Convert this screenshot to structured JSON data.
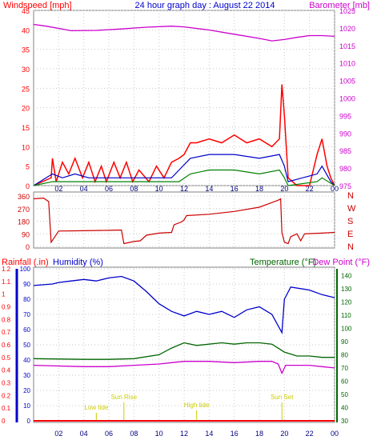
{
  "colors": {
    "wind": "#ff0000",
    "wind_avg": "#0000c8",
    "wind_low": "#008000",
    "barometer": "#cc00cc",
    "direction": "#cc0000",
    "humidity": "#0000cc",
    "temperature": "#006600",
    "dewpoint": "#cc00cc",
    "rainfall": "#ff0000",
    "events": "#cccc00",
    "title": "#0000cc",
    "grid": "#c8c8c8"
  },
  "chart_data": [
    {
      "type": "line",
      "title": "24 hour graph day : August 22 2014",
      "left_axis_label": "Windspeed [mph]",
      "right_axis_label": "Barometer [mb]",
      "x_ticks": [
        "02",
        "04",
        "06",
        "08",
        "10",
        "12",
        "14",
        "16",
        "18",
        "20",
        "22",
        "00"
      ],
      "y_left_ticks": [
        "0",
        "5",
        "10",
        "15",
        "20",
        "25",
        "30",
        "35",
        "40",
        "45"
      ],
      "y_right_ticks": [
        "975",
        "980",
        "985",
        "990",
        "995",
        "1000",
        "1005",
        "1010",
        "1015",
        "1020",
        "1025"
      ],
      "ylim_left": [
        0,
        45
      ],
      "ylim_right": [
        975,
        1025
      ],
      "x_range": [
        0,
        24
      ],
      "series": [
        {
          "values": [
            [
              0,
              0
            ],
            [
              1.4,
              2
            ],
            [
              1.5,
              7
            ],
            [
              1.8,
              1
            ],
            [
              2.3,
              6
            ],
            [
              2.8,
              3
            ],
            [
              3.3,
              7
            ],
            [
              3.9,
              2
            ],
            [
              4.4,
              6
            ],
            [
              4.9,
              1
            ],
            [
              5.4,
              5
            ],
            [
              5.8,
              1
            ],
            [
              6.4,
              6
            ],
            [
              6.9,
              2
            ],
            [
              7.4,
              6
            ],
            [
              7.9,
              1
            ],
            [
              8.4,
              4
            ],
            [
              9.2,
              1
            ],
            [
              9.8,
              5
            ],
            [
              10.4,
              2
            ],
            [
              11.0,
              6
            ],
            [
              11.6,
              7
            ],
            [
              12.0,
              8
            ],
            [
              12.5,
              11
            ],
            [
              13.0,
              11
            ],
            [
              14.0,
              12
            ],
            [
              15.0,
              11
            ],
            [
              16.0,
              13
            ],
            [
              17.0,
              11
            ],
            [
              18.0,
              12
            ],
            [
              19.0,
              10
            ],
            [
              19.6,
              12
            ],
            [
              19.8,
              26
            ],
            [
              20.0,
              18
            ],
            [
              20.3,
              2
            ],
            [
              21.0,
              0
            ],
            [
              22.0,
              0
            ],
            [
              22.6,
              8
            ],
            [
              23.0,
              12
            ],
            [
              23.4,
              5
            ],
            [
              23.7,
              2
            ],
            [
              24,
              0
            ]
          ]
        },
        {
          "values": [
            [
              0,
              0
            ],
            [
              1.5,
              3
            ],
            [
              2.3,
              2
            ],
            [
              3.3,
              3
            ],
            [
              4.4,
              2
            ],
            [
              6.4,
              2
            ],
            [
              7.4,
              2
            ],
            [
              9.8,
              2
            ],
            [
              11.0,
              2
            ],
            [
              11.6,
              4
            ],
            [
              12.5,
              7
            ],
            [
              14.0,
              8
            ],
            [
              16.0,
              8
            ],
            [
              18.0,
              7
            ],
            [
              19.6,
              8
            ],
            [
              20.0,
              5
            ],
            [
              20.3,
              1
            ],
            [
              22.6,
              3
            ],
            [
              23.0,
              5
            ],
            [
              23.7,
              1
            ],
            [
              24,
              0
            ]
          ]
        },
        {
          "values": [
            [
              0,
              0
            ],
            [
              1.5,
              1
            ],
            [
              3.3,
              1
            ],
            [
              6.4,
              1
            ],
            [
              7.4,
              1
            ],
            [
              11.0,
              1
            ],
            [
              11.6,
              1
            ],
            [
              12.5,
              3
            ],
            [
              14.0,
              4
            ],
            [
              16.0,
              4
            ],
            [
              18.0,
              3
            ],
            [
              19.6,
              4
            ],
            [
              20.0,
              2
            ],
            [
              20.3,
              0
            ],
            [
              22.6,
              1
            ],
            [
              23.0,
              2
            ],
            [
              24,
              0
            ]
          ]
        },
        {
          "values": [
            [
              0,
              1021
            ],
            [
              1,
              1020.5
            ],
            [
              3,
              1019.2
            ],
            [
              5,
              1019.3
            ],
            [
              7,
              1019.7
            ],
            [
              9,
              1020.2
            ],
            [
              11,
              1020.5
            ],
            [
              12,
              1020.3
            ],
            [
              14,
              1019.4
            ],
            [
              16,
              1018.2
            ],
            [
              18,
              1017.0
            ],
            [
              19,
              1016.3
            ],
            [
              20,
              1016.7
            ],
            [
              21,
              1017.3
            ],
            [
              22,
              1017.8
            ],
            [
              23,
              1017.8
            ],
            [
              24,
              1017.6
            ]
          ]
        }
      ]
    },
    {
      "type": "line",
      "y_ticks": [
        "360",
        "270",
        "180",
        "90",
        "0"
      ],
      "compass_labels": [
        "N",
        "W",
        "S",
        "E",
        "N"
      ],
      "ylim": [
        0,
        360
      ],
      "x_range": [
        0,
        24
      ],
      "series": [
        {
          "values": [
            [
              0,
              340
            ],
            [
              0.8,
              345
            ],
            [
              1.2,
              320
            ],
            [
              1.4,
              30
            ],
            [
              2,
              110
            ],
            [
              4,
              112
            ],
            [
              6,
              115
            ],
            [
              7,
              117
            ],
            [
              7.2,
              20
            ],
            [
              8,
              35
            ],
            [
              8.5,
              40
            ],
            [
              9,
              80
            ],
            [
              10,
              95
            ],
            [
              11,
              100
            ],
            [
              11.2,
              155
            ],
            [
              11.8,
              175
            ],
            [
              12,
              190
            ],
            [
              12.2,
              220
            ],
            [
              14,
              230
            ],
            [
              16,
              250
            ],
            [
              18,
              280
            ],
            [
              19.5,
              330
            ],
            [
              19.7,
              340
            ],
            [
              19.8,
              100
            ],
            [
              20.0,
              30
            ],
            [
              20.3,
              20
            ],
            [
              20.5,
              70
            ],
            [
              21,
              90
            ],
            [
              21.3,
              40
            ],
            [
              21.6,
              90
            ],
            [
              23,
              95
            ],
            [
              24,
              100
            ]
          ]
        }
      ]
    },
    {
      "type": "line",
      "labels": {
        "rainfall": "Rainfall (.in)",
        "humidity": "Humidity (%)",
        "temperature": "Temperature (°F)",
        "dewpoint": "Dew Point (°F)"
      },
      "x_ticks": [
        "02",
        "04",
        "06",
        "08",
        "10",
        "12",
        "14",
        "16",
        "18",
        "20",
        "22",
        "00"
      ],
      "rain_ticks": [
        "0",
        "0.1",
        "0.2",
        "0.3",
        "0.4",
        "0.5",
        "0.6",
        "0.7",
        "0.8",
        "0.9",
        "1",
        "1.1",
        "1.2"
      ],
      "humidity_ticks": [
        "0",
        "10",
        "20",
        "30",
        "40",
        "50",
        "60",
        "70",
        "80",
        "90",
        "100"
      ],
      "temp_ticks": [
        "30",
        "40",
        "50",
        "60",
        "70",
        "80",
        "90",
        "100",
        "110",
        "120",
        "130",
        "140"
      ],
      "ylim_rain": [
        0,
        1.2
      ],
      "ylim_humidity": [
        0,
        100
      ],
      "ylim_temp": [
        30,
        145
      ],
      "x_range": [
        0,
        24
      ],
      "events": [
        {
          "label": "Low tide",
          "x": 5.0
        },
        {
          "label": "Sun Rise",
          "x": 7.2
        },
        {
          "label": "High tide",
          "x": 13.0
        },
        {
          "label": "Sun Set",
          "x": 19.8
        }
      ],
      "series": [
        {
          "values": [
            [
              0,
              0
            ],
            [
              24,
              0
            ]
          ]
        },
        {
          "values": [
            [
              0,
              89
            ],
            [
              1.5,
              90
            ],
            [
              2,
              91
            ],
            [
              3,
              92
            ],
            [
              4,
              93
            ],
            [
              5,
              92
            ],
            [
              6,
              94
            ],
            [
              7,
              95
            ],
            [
              8,
              92
            ],
            [
              9,
              85
            ],
            [
              10,
              77
            ],
            [
              11,
              72
            ],
            [
              12,
              69
            ],
            [
              13,
              72
            ],
            [
              14,
              70
            ],
            [
              15,
              72
            ],
            [
              16,
              68
            ],
            [
              17,
              73
            ],
            [
              18,
              75
            ],
            [
              19,
              70
            ],
            [
              19.8,
              58
            ],
            [
              20,
              80
            ],
            [
              20.5,
              88
            ],
            [
              22,
              86
            ],
            [
              23,
              83
            ],
            [
              24,
              81
            ]
          ]
        },
        {
          "values": [
            [
              0,
              77
            ],
            [
              4,
              76.5
            ],
            [
              6,
              76.5
            ],
            [
              8,
              77
            ],
            [
              10,
              80
            ],
            [
              11,
              85
            ],
            [
              12,
              89
            ],
            [
              13,
              87
            ],
            [
              15,
              89
            ],
            [
              16,
              88
            ],
            [
              17,
              89
            ],
            [
              18,
              89
            ],
            [
              19,
              88
            ],
            [
              20,
              82
            ],
            [
              21,
              79
            ],
            [
              22,
              79
            ],
            [
              23,
              78
            ],
            [
              24,
              78
            ]
          ]
        },
        {
          "values": [
            [
              0,
              72
            ],
            [
              4,
              71
            ],
            [
              6,
              71
            ],
            [
              8,
              72
            ],
            [
              10,
              73
            ],
            [
              11,
              74
            ],
            [
              12,
              75
            ],
            [
              14,
              75
            ],
            [
              16,
              74
            ],
            [
              18,
              75
            ],
            [
              19,
              75
            ],
            [
              19.5,
              73
            ],
            [
              19.8,
              66
            ],
            [
              20.1,
              72
            ],
            [
              21,
              72
            ],
            [
              22,
              72
            ],
            [
              23,
              71
            ],
            [
              24,
              70
            ]
          ]
        }
      ]
    }
  ]
}
